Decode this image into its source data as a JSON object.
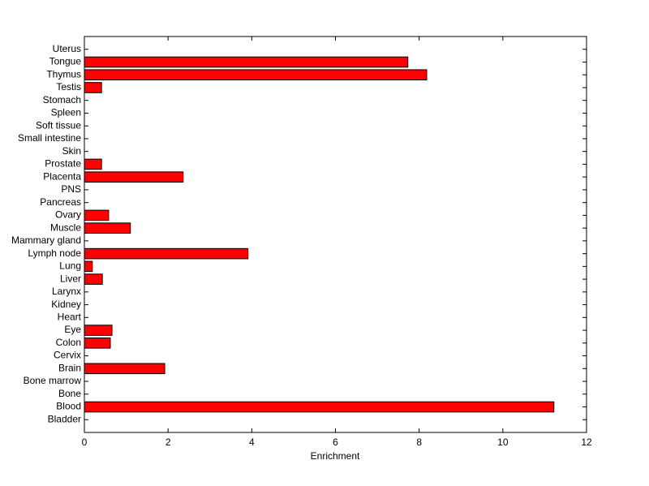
{
  "chart_data": {
    "type": "bar",
    "orientation": "horizontal",
    "xlabel": "Enrichment",
    "categories": [
      "Bladder",
      "Blood",
      "Bone",
      "Bone marrow",
      "Brain",
      "Cervix",
      "Colon",
      "Eye",
      "Heart",
      "Kidney",
      "Larynx",
      "Liver",
      "Lung",
      "Lymph node",
      "Mammary gland",
      "Muscle",
      "Ovary",
      "Pancreas",
      "PNS",
      "Placenta",
      "Prostate",
      "Skin",
      "Small intestine",
      "Soft tissue",
      "Spleen",
      "Stomach",
      "Testis",
      "Thymus",
      "Tongue",
      "Uterus"
    ],
    "values": [
      0,
      11.22,
      0,
      0,
      1.92,
      0,
      0.62,
      0.66,
      0,
      0,
      0,
      0.43,
      0.19,
      3.91,
      0,
      1.1,
      0.58,
      0,
      0,
      2.36,
      0.41,
      0,
      0,
      0,
      0,
      0,
      0.41,
      8.18,
      7.73,
      0
    ],
    "color": "#ff0000",
    "xlim": [
      0,
      12
    ],
    "xticks": [
      0,
      2,
      4,
      6,
      8,
      10,
      12
    ],
    "grid": false
  }
}
